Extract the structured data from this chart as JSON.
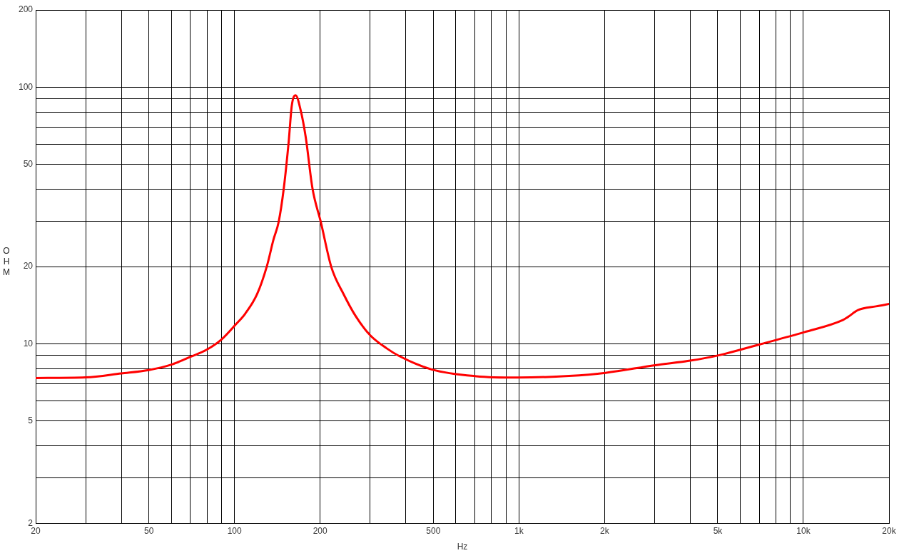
{
  "chart_data": {
    "type": "line",
    "xlabel": "Hz",
    "ylabel": "OHM",
    "log": "xy",
    "grid": true,
    "legend": false,
    "marker": "none",
    "line_style": "solid",
    "xlim": [
      20,
      20000
    ],
    "ylim": [
      2,
      200
    ],
    "xticks": [
      20,
      {
        "value": 30,
        "label": null
      },
      {
        "value": 40,
        "label": null
      },
      50,
      {
        "value": 60,
        "label": null
      },
      {
        "value": 70,
        "label": null
      },
      {
        "value": 80,
        "label": null
      },
      {
        "value": 90,
        "label": null
      },
      100,
      200,
      {
        "value": 300,
        "label": null
      },
      {
        "value": 400,
        "label": null
      },
      500,
      {
        "value": 600,
        "label": null
      },
      {
        "value": 700,
        "label": null
      },
      {
        "value": 800,
        "label": null
      },
      {
        "value": 900,
        "label": null
      },
      {
        "value": 1000,
        "label": "1k"
      },
      {
        "value": 2000,
        "label": "2k"
      },
      {
        "value": 3000,
        "label": null
      },
      {
        "value": 4000,
        "label": null
      },
      {
        "value": 5000,
        "label": "5k"
      },
      {
        "value": 6000,
        "label": null
      },
      {
        "value": 7000,
        "label": null
      },
      {
        "value": 8000,
        "label": null
      },
      {
        "value": 9000,
        "label": null
      },
      {
        "value": 10000,
        "label": "10k"
      },
      {
        "value": 20000,
        "label": "20k"
      }
    ],
    "yticks": [
      2,
      {
        "value": 3,
        "label": null
      },
      {
        "value": 4,
        "label": null
      },
      5,
      {
        "value": 6,
        "label": null
      },
      {
        "value": 7,
        "label": null
      },
      {
        "value": 8,
        "label": null
      },
      {
        "value": 9,
        "label": null
      },
      10,
      20,
      {
        "value": 30,
        "label": null
      },
      {
        "value": 40,
        "label": null
      },
      50,
      {
        "value": 60,
        "label": null
      },
      {
        "value": 70,
        "label": null
      },
      {
        "value": 80,
        "label": null
      },
      {
        "value": 90,
        "label": null
      },
      100,
      200
    ],
    "series": [
      {
        "color": "#ff0000",
        "x": [
          20,
          30,
          40,
          50,
          60,
          70,
          80,
          90,
          101,
          109,
          120,
          130,
          137,
          143,
          149,
          155,
          159,
          164,
          171,
          178,
          188,
          201,
          219,
          242,
          267,
          300,
          343,
          379,
          495,
          707,
          991,
          1500,
          2016,
          3014,
          4000,
          5031,
          7096,
          10066,
          13800,
          14300,
          15600,
          18000,
          20000
        ],
        "values": [
          7.36,
          7.4,
          7.67,
          7.91,
          8.3,
          8.9,
          9.5,
          10.4,
          11.9,
          13.1,
          15.6,
          20.1,
          25.4,
          29.9,
          40.3,
          61,
          84.8,
          93,
          81,
          63.9,
          40.3,
          29.9,
          19.9,
          15.6,
          12.8,
          10.8,
          9.6,
          8.97,
          7.94,
          7.48,
          7.39,
          7.5,
          7.71,
          8.26,
          8.6,
          9.02,
          9.98,
          11.1,
          12.4,
          12.7,
          13.55,
          14.0,
          14.3
        ]
      }
    ]
  }
}
